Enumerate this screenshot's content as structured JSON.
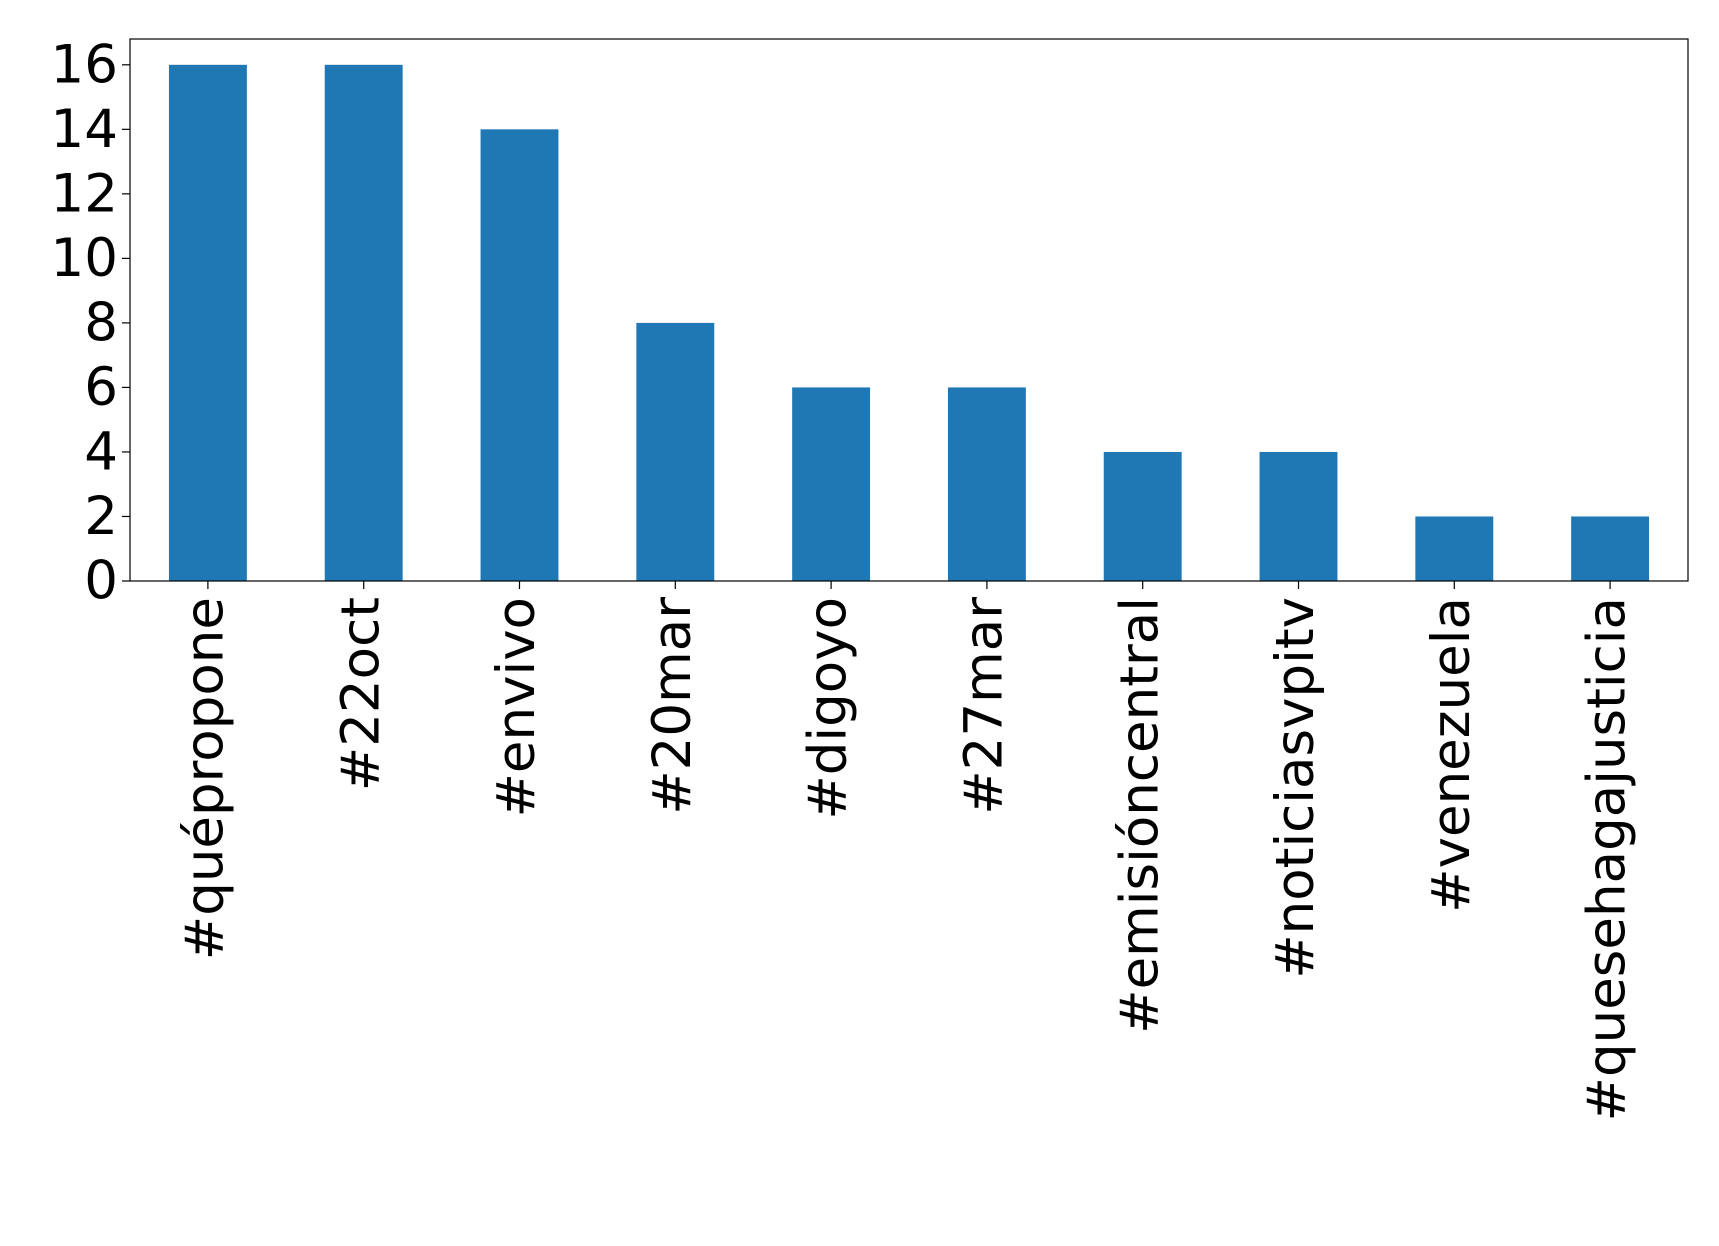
{
  "chart_data": {
    "type": "bar",
    "categories": [
      "#quépropone",
      "#22oct",
      "#envivo",
      "#20mar",
      "#digoyo",
      "#27mar",
      "#emisióncentral",
      "#noticiasvpitv",
      "#venezuela",
      "#quesehagajusticia"
    ],
    "values": [
      16,
      16,
      14,
      8,
      6,
      6,
      4,
      4,
      2,
      2
    ],
    "color": "#1f77b4",
    "ylim": [
      0,
      16.8
    ],
    "yticks": [
      0,
      2,
      4,
      6,
      8,
      10,
      12,
      14,
      16
    ],
    "grid": false
  }
}
